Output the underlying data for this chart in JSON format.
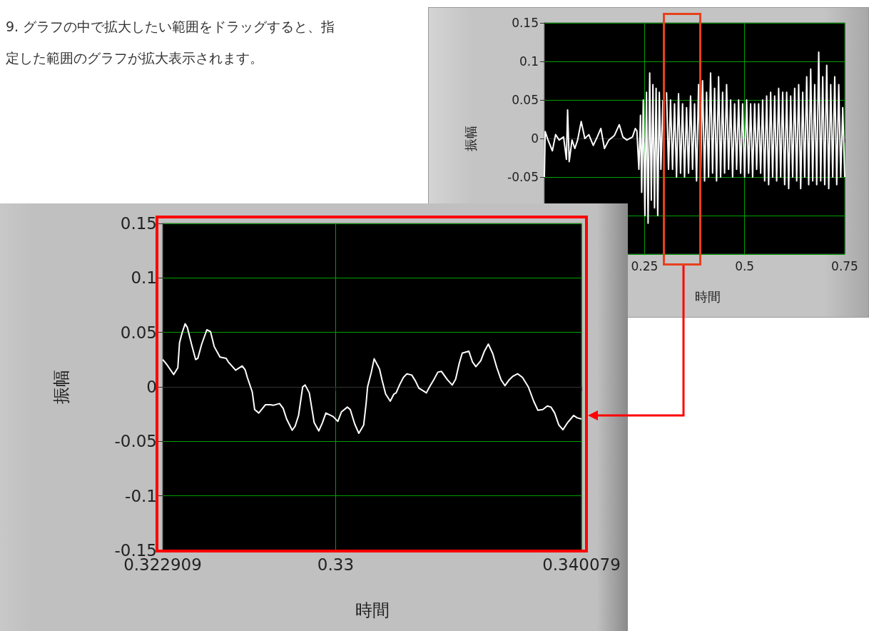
{
  "chart_data": [
    {
      "type": "line",
      "annotations": [
        "9. グラフの中で拡大したい範囲をドラッグすると、指定した範囲のグラフが拡大表示されます。"
      ],
      "xlabel": "時間",
      "ylabel": "振幅",
      "xlim": [
        0,
        0.75
      ],
      "ylim": [
        -0.15,
        0.15
      ],
      "xticks": [
        0.25,
        0.5,
        0.75
      ],
      "yticks": [
        -0.05,
        0,
        0.05,
        0.1,
        0.15
      ],
      "grid": true,
      "series": [
        {
          "color": "#ffffff",
          "x": [
            0,
            0.002,
            0.009,
            0.02,
            0.028,
            0.037,
            0.048,
            0.055,
            0.058,
            0.062,
            0.069,
            0.076,
            0.083,
            0.092,
            0.101,
            0.111,
            0.122,
            0.132,
            0.141,
            0.15,
            0.161,
            0.175,
            0.187,
            0.196,
            0.206,
            0.22,
            0.227,
            0.231,
            0.236,
            0.24,
            0.243,
            0.247,
            0.251,
            0.255,
            0.259,
            0.263,
            0.267,
            0.271,
            0.275,
            0.279,
            0.283,
            0.287,
            0.291,
            0.296,
            0.3,
            0.305,
            0.31,
            0.315,
            0.32,
            0.325,
            0.33,
            0.335,
            0.34,
            0.345,
            0.35,
            0.355,
            0.36,
            0.365,
            0.37,
            0.375,
            0.38,
            0.385,
            0.39,
            0.395,
            0.4,
            0.405,
            0.41,
            0.415,
            0.42,
            0.425,
            0.43,
            0.435,
            0.44,
            0.445,
            0.45,
            0.455,
            0.46,
            0.465,
            0.47,
            0.475,
            0.48,
            0.485,
            0.49,
            0.495,
            0.5,
            0.505,
            0.51,
            0.515,
            0.52,
            0.525,
            0.53,
            0.535,
            0.54,
            0.545,
            0.55,
            0.555,
            0.56,
            0.565,
            0.57,
            0.575,
            0.58,
            0.585,
            0.59,
            0.595,
            0.6,
            0.605,
            0.61,
            0.615,
            0.62,
            0.625,
            0.63,
            0.635,
            0.64,
            0.645,
            0.65,
            0.655,
            0.66,
            0.665,
            0.67,
            0.675,
            0.68,
            0.685,
            0.69,
            0.695,
            0.7,
            0.705,
            0.71,
            0.715,
            0.72,
            0.725,
            0.73,
            0.735,
            0.74,
            0.745,
            0.75
          ],
          "values": [
            -0.05,
            0.009,
            -0.002,
            -0.016,
            0.005,
            -0.002,
            0.002,
            -0.027,
            0.037,
            -0.03,
            -0.002,
            -0.013,
            -0.002,
            0.022,
            0,
            0.005,
            -0.009,
            0.002,
            0.013,
            -0.013,
            -0.002,
            0.004,
            0.018,
            0.002,
            -0.002,
            0.002,
            0.013,
            0.01,
            -0.04,
            0.03,
            -0.07,
            0.05,
            -0.1,
            0.06,
            -0.11,
            0.085,
            -0.08,
            0.07,
            -0.09,
            0.065,
            -0.1,
            0.06,
            -0.04,
            0.05,
            null,
            0.06,
            -0.04,
            0.05,
            -0.04,
            0.045,
            -0.05,
            0.058,
            -0.045,
            0.045,
            -0.05,
            0.04,
            -0.045,
            0.055,
            -0.04,
            0.045,
            -0.055,
            0.07,
            -0.05,
            0.075,
            -0.055,
            0.06,
            -0.05,
            0.085,
            -0.045,
            0.065,
            -0.055,
            0.08,
            -0.05,
            0.06,
            -0.045,
            0.07,
            -0.04,
            0.05,
            -0.05,
            0.045,
            -0.04,
            0.05,
            -0.045,
            0.045,
            -0.05,
            0.05,
            -0.045,
            0.045,
            -0.05,
            0.045,
            -0.04,
            0.045,
            -0.045,
            0.05,
            -0.055,
            0.055,
            -0.06,
            0.06,
            -0.05,
            0.055,
            -0.055,
            0.065,
            -0.05,
            0.06,
            -0.06,
            0.06,
            -0.065,
            0.055,
            -0.05,
            0.065,
            -0.055,
            0.07,
            -0.065,
            0.06,
            -0.05,
            0.08,
            -0.06,
            0.09,
            -0.055,
            0.07,
            -0.06,
            0.112,
            -0.055,
            0.08,
            -0.06,
            0.095,
            -0.065,
            0.07,
            -0.05,
            0.08,
            -0.06,
            0.07,
            -0.05,
            0.04,
            -0.05
          ]
        }
      ]
    },
    {
      "type": "line",
      "xlabel": "時間",
      "ylabel": "振幅",
      "xlim": [
        0.322909,
        0.340079
      ],
      "ylim": [
        -0.15,
        0.15
      ],
      "xticks": [
        0.322909,
        0.33,
        0.340079
      ],
      "yticks": [
        -0.15,
        -0.1,
        -0.05,
        0,
        0.05,
        0.1,
        0.15
      ],
      "grid": true,
      "series": [
        {
          "color": "#ffffff",
          "x": [
            0.322909,
            0.32307,
            0.32336,
            0.32353,
            0.3236,
            0.3237,
            0.32383,
            0.32392,
            0.32409,
            0.32426,
            0.32435,
            0.32451,
            0.32472,
            0.32487,
            0.32502,
            0.32526,
            0.32551,
            0.3256,
            0.3259,
            0.32617,
            0.32629,
            0.32638,
            0.32658,
            0.32668,
            0.32685,
            0.32712,
            0.32731,
            0.32746,
            0.3277,
            0.32785,
            0.32799,
            0.32822,
            0.32834,
            0.32848,
            0.32865,
            0.32875,
            0.32892,
            0.32912,
            0.32931,
            0.32946,
            0.3296,
            0.3299,
            0.33009,
            0.33024,
            0.33048,
            0.3306,
            0.33078,
            0.33095,
            0.33115,
            0.33125,
            0.33131,
            0.33146,
            0.33158,
            0.3318,
            0.3319,
            0.33205,
            0.33224,
            0.33239,
            0.33248,
            0.33263,
            0.33278,
            0.33292,
            0.33312,
            0.33327,
            0.33341,
            0.33372,
            0.33385,
            0.33405,
            0.33419,
            0.33434,
            0.33458,
            0.33478,
            0.33492,
            0.33507,
            0.33519,
            0.33546,
            0.33561,
            0.33575,
            0.33595,
            0.3361,
            0.33626,
            0.33644,
            0.33661,
            0.33678,
            0.33694,
            0.33712,
            0.33727,
            0.33746,
            0.33766,
            0.3379,
            0.33812,
            0.33829,
            0.33849,
            0.33868,
            0.33883,
            0.33898,
            0.33915,
            0.33932,
            0.33951,
            0.33976,
            0.3399,
            0.340079
          ],
          "values": [
            0.0251,
            0.0208,
            0.0114,
            0.0175,
            0.0404,
            0.0491,
            0.0579,
            0.0546,
            0.0393,
            0.0251,
            0.0262,
            0.0393,
            0.0524,
            0.0507,
            0.0371,
            0.0273,
            0.0262,
            0.0229,
            0.0153,
            0.0192,
            0.0157,
            0.0087,
            -0.0044,
            -0.0208,
            -0.024,
            -0.0164,
            -0.0164,
            -0.0168,
            -0.0153,
            -0.0197,
            -0.0295,
            -0.0398,
            -0.036,
            -0.0262,
            0,
            0.0017,
            -0.0055,
            -0.0328,
            -0.0404,
            -0.0328,
            -0.024,
            -0.0273,
            -0.0317,
            -0.0229,
            -0.0186,
            -0.0208,
            -0.0339,
            -0.0426,
            -0.035,
            -0.0153,
            0,
            0.0131,
            0.0258,
            0.0164,
            0.0066,
            -0.0066,
            -0.0131,
            -0.0066,
            -0.0055,
            0.0022,
            0.0087,
            0.012,
            0.0109,
            0.0055,
            -0.0011,
            -0.0055,
            0,
            0.0076,
            0.0135,
            0.0142,
            0.0066,
            0.0017,
            0.007,
            0.0218,
            0.031,
            0.0328,
            0.0229,
            0.0186,
            0.024,
            0.0328,
            0.0393,
            0.0306,
            0.0175,
            0.0066,
            0.0011,
            0.0066,
            0.0098,
            0.012,
            0.0087,
            0,
            -0.0131,
            -0.0214,
            -0.0208,
            -0.0175,
            -0.0186,
            -0.024,
            -0.035,
            -0.0393,
            -0.0328,
            -0.0262,
            -0.0284,
            -0.0295
          ]
        }
      ]
    }
  ]
}
